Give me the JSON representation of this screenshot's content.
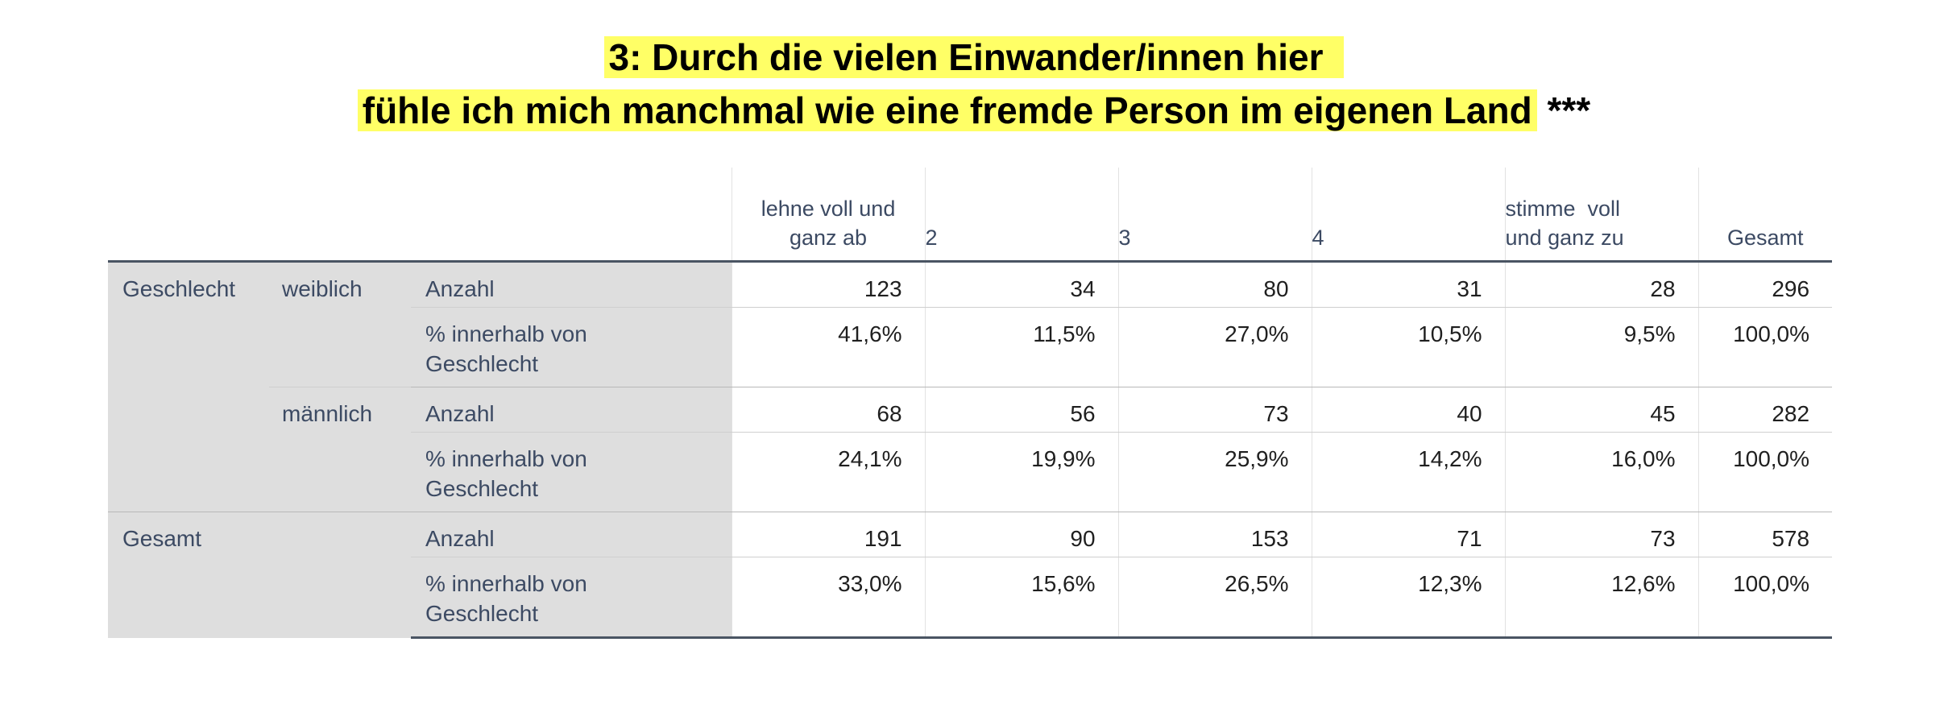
{
  "title": {
    "line1": "3: Durch die vielen Einwander/innen hier",
    "line2": "fühle ich mich manchmal wie eine fremde Person im eigenen Land",
    "suffix": "***"
  },
  "table": {
    "columns": [
      "lehne voll und ganz ab",
      "2",
      "3",
      "4",
      "stimme  voll und ganz zu",
      "Gesamt"
    ],
    "column_lines": {
      "c1": [
        "lehne voll und",
        "ganz ab"
      ],
      "c5": [
        "stimme  voll",
        "und ganz zu"
      ]
    },
    "row_groups": [
      {
        "label": "Geschlecht",
        "subgroups": [
          {
            "label": "weiblich",
            "rows": [
              {
                "label": "Anzahl",
                "values": [
                  "123",
                  "34",
                  "80",
                  "31",
                  "28",
                  "296"
                ]
              },
              {
                "label": "% innerhalb von Geschlecht",
                "values": [
                  "41,6%",
                  "11,5%",
                  "27,0%",
                  "10,5%",
                  "9,5%",
                  "100,0%"
                ]
              }
            ]
          },
          {
            "label": "männlich",
            "rows": [
              {
                "label": "Anzahl",
                "values": [
                  "68",
                  "56",
                  "73",
                  "40",
                  "45",
                  "282"
                ]
              },
              {
                "label": "% innerhalb von Geschlecht",
                "values": [
                  "24,1%",
                  "19,9%",
                  "25,9%",
                  "14,2%",
                  "16,0%",
                  "100,0%"
                ]
              }
            ]
          }
        ]
      },
      {
        "label": "Gesamt",
        "subgroups": [
          {
            "label": "",
            "rows": [
              {
                "label": "Anzahl",
                "values": [
                  "191",
                  "90",
                  "153",
                  "71",
                  "73",
                  "578"
                ]
              },
              {
                "label": "% innerhalb von Geschlecht",
                "values": [
                  "33,0%",
                  "15,6%",
                  "26,5%",
                  "12,3%",
                  "12,6%",
                  "100,0%"
                ]
              }
            ]
          }
        ]
      }
    ],
    "pct_label_lines": [
      "% innerhalb von",
      "Geschlecht"
    ]
  },
  "colors": {
    "highlight": "#ffff66",
    "stub_background": "#dedede",
    "header_text": "#3c4a63",
    "rule": "#4a5563"
  }
}
